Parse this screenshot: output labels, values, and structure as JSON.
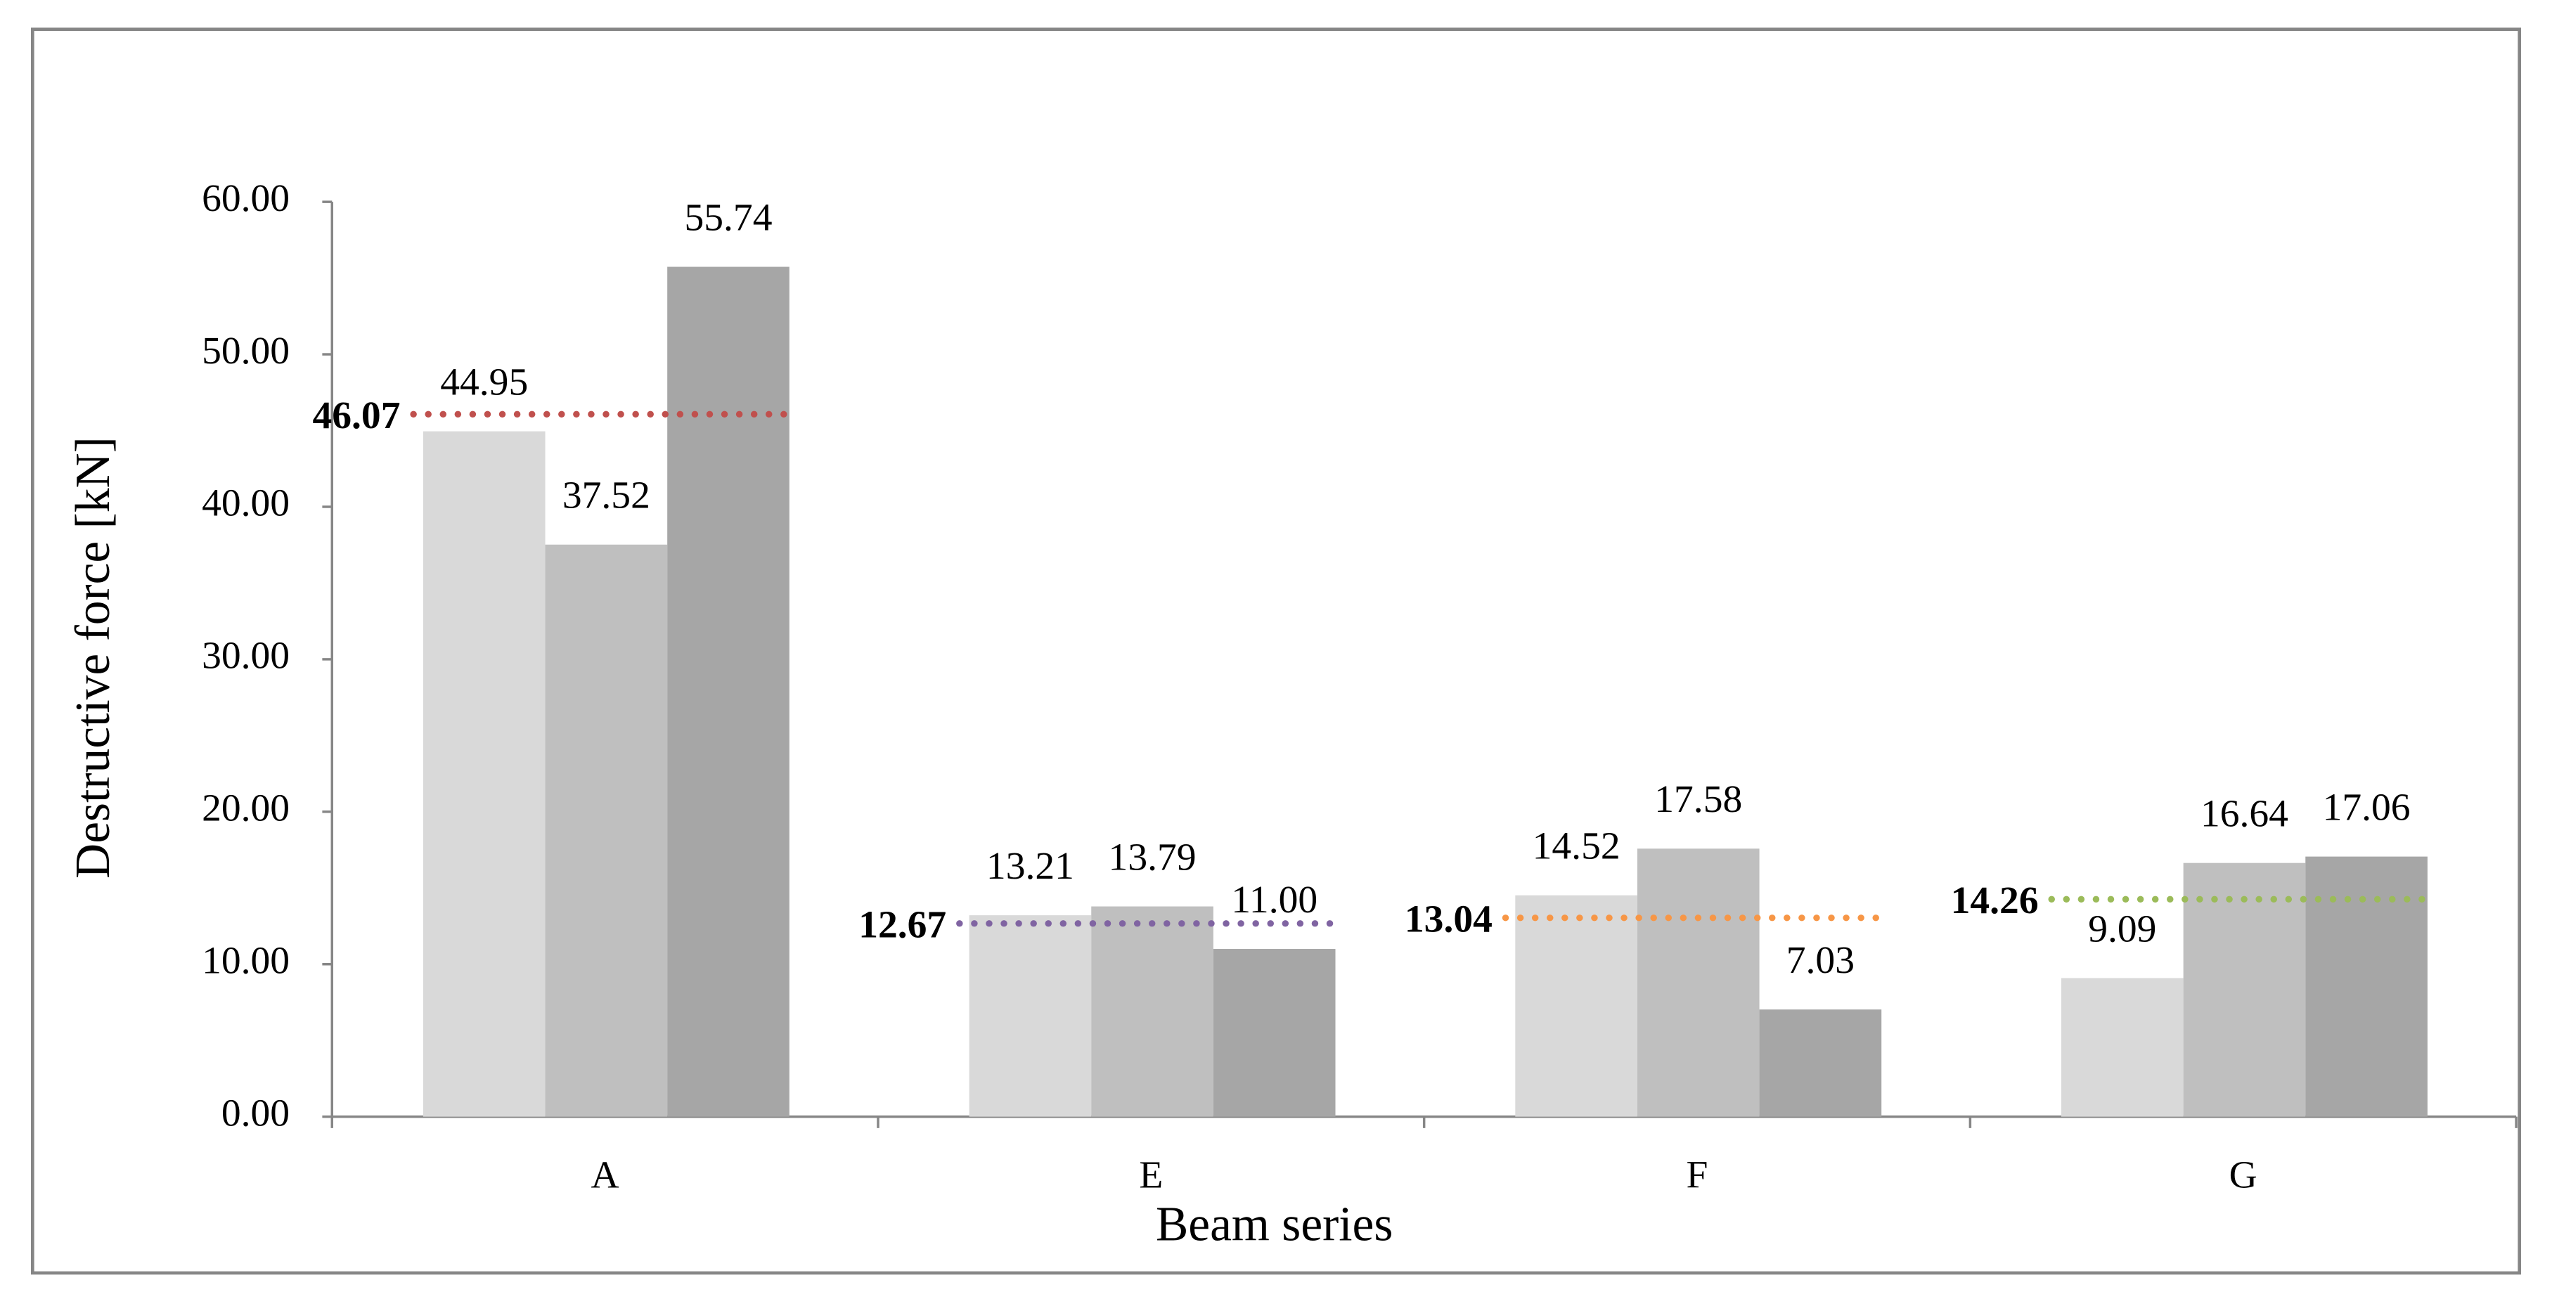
{
  "chart_data": {
    "type": "bar",
    "y_label": "Destructive force [kN]",
    "x_label": "Beam series",
    "categories": [
      "A",
      "E",
      "F",
      "G"
    ],
    "series": [
      {
        "color": "#d9d9d9",
        "values": [
          44.95,
          13.21,
          14.52,
          9.09
        ],
        "value_labels": [
          "44.95",
          "13.21",
          "14.52",
          "9.09"
        ]
      },
      {
        "color": "#bfbfbf",
        "values": [
          37.52,
          13.79,
          17.58,
          16.64
        ],
        "value_labels": [
          "37.52",
          "13.79",
          "17.58",
          "16.64"
        ]
      },
      {
        "color": "#a6a6a6",
        "values": [
          55.74,
          11.0,
          7.03,
          17.06
        ],
        "value_labels": [
          "55.74",
          "11.00",
          "7.03",
          "17.06"
        ]
      }
    ],
    "averages": [
      {
        "value": 46.07,
        "color": "#c0504d"
      },
      {
        "value": 12.67,
        "color": "#8064a2"
      },
      {
        "value": 13.04,
        "color": "#f79646"
      },
      {
        "value": 14.26,
        "color": "#9bbb59"
      }
    ],
    "ylim": [
      0,
      60
    ],
    "yticks": [
      {
        "value": 0,
        "label": "0.00"
      },
      {
        "value": 10,
        "label": "10.00"
      },
      {
        "value": 20,
        "label": "20.00"
      },
      {
        "value": 30,
        "label": "30.00"
      },
      {
        "value": 40,
        "label": "40.00"
      },
      {
        "value": 50,
        "label": "50.00"
      },
      {
        "value": 60,
        "label": "60.00"
      }
    ]
  }
}
